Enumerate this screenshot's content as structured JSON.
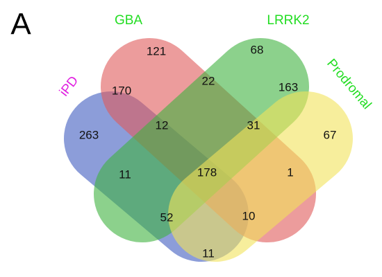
{
  "panel_label": "A",
  "sets": [
    {
      "label": "iPD",
      "color": "#3f5cc0"
    },
    {
      "label": "GBA",
      "color": "#e05a5a"
    },
    {
      "label": "LRRK2",
      "color": "#3fb33f"
    },
    {
      "label": "Prodromal",
      "color": "#f2e25a"
    }
  ],
  "regions": [
    {
      "count": 121
    },
    {
      "count": 68
    },
    {
      "count": 170
    },
    {
      "count": 22
    },
    {
      "count": 163
    },
    {
      "count": 263
    },
    {
      "count": 12
    },
    {
      "count": 31
    },
    {
      "count": 67
    },
    {
      "count": 11
    },
    {
      "count": 178
    },
    {
      "count": 1
    },
    {
      "count": 52
    },
    {
      "count": 10
    },
    {
      "count": 11
    }
  ]
}
